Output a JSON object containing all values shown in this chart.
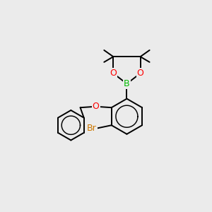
{
  "background_color": "#ebebeb",
  "bond_color": "#000000",
  "bond_width": 1.4,
  "atom_colors": {
    "B": "#00bb00",
    "O": "#ff0000",
    "Br": "#cc7700",
    "C": "#000000"
  },
  "figsize": [
    3.0,
    3.0
  ],
  "dpi": 100,
  "xlim": [
    0,
    10
  ],
  "ylim": [
    0,
    10
  ],
  "font_size": 8.5
}
